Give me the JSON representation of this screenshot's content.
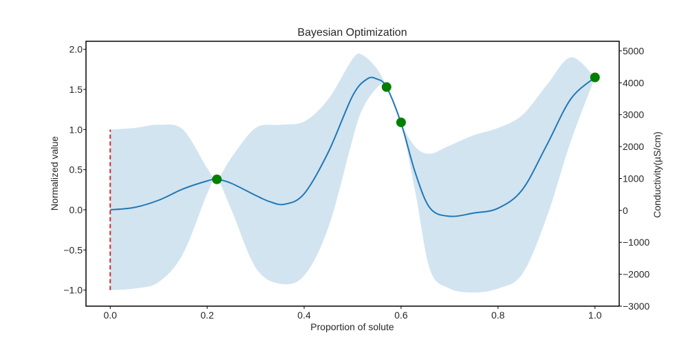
{
  "chart_data": {
    "type": "line",
    "title": "Bayesian Optimization",
    "xlabel": "Proportion of solute",
    "ylabel_left": "Normalized value",
    "ylabel_right": "Conductivity(µS/cm)",
    "xlim": [
      -0.05,
      1.05
    ],
    "ylim_left": [
      -1.2,
      2.1
    ],
    "ylim_right": [
      -3000,
      5300
    ],
    "x_ticks": [
      0.0,
      0.2,
      0.4,
      0.6,
      0.8,
      1.0
    ],
    "x_tick_labels": [
      "0.0",
      "0.2",
      "0.4",
      "0.6",
      "0.8",
      "1.0"
    ],
    "y_left_ticks": [
      -1.0,
      -0.5,
      0.0,
      0.5,
      1.0,
      1.5,
      2.0
    ],
    "y_left_tick_labels": [
      "−1.0",
      "−0.5",
      "0.0",
      "0.5",
      "1.0",
      "1.5",
      "2.0"
    ],
    "y_right_ticks": [
      -3000,
      -2000,
      -1000,
      0,
      1000,
      2000,
      3000,
      4000,
      5000
    ],
    "y_right_tick_labels": [
      "−3000",
      "−2000",
      "−1000",
      "0",
      "1000",
      "2000",
      "3000",
      "4000",
      "5000"
    ],
    "grid": false,
    "colors": {
      "mean": "#1f77b4",
      "band": "#1f77b4",
      "observations": "#008000",
      "marker_line": "#d62728"
    },
    "series": [
      {
        "kind": "mean",
        "x": [
          0.0,
          0.05,
          0.1,
          0.15,
          0.2,
          0.22,
          0.25,
          0.3,
          0.33,
          0.36,
          0.4,
          0.45,
          0.5,
          0.53,
          0.55,
          0.57,
          0.6,
          0.63,
          0.66,
          0.7,
          0.75,
          0.8,
          0.85,
          0.9,
          0.95,
          1.0
        ],
        "y": [
          0.0,
          0.03,
          0.12,
          0.26,
          0.36,
          0.38,
          0.33,
          0.18,
          0.1,
          0.07,
          0.2,
          0.72,
          1.42,
          1.63,
          1.63,
          1.53,
          1.08,
          0.45,
          0.02,
          -0.08,
          -0.04,
          0.02,
          0.25,
          0.8,
          1.38,
          1.65
        ]
      },
      {
        "kind": "band_upper",
        "x": [
          0.0,
          0.05,
          0.1,
          0.15,
          0.2,
          0.22,
          0.25,
          0.3,
          0.35,
          0.4,
          0.45,
          0.5,
          0.52,
          0.55,
          0.57,
          0.6,
          0.63,
          0.66,
          0.7,
          0.75,
          0.8,
          0.85,
          0.9,
          0.95,
          1.0
        ],
        "y": [
          1.0,
          1.02,
          1.06,
          1.0,
          0.52,
          0.38,
          0.65,
          1.02,
          1.06,
          1.1,
          1.38,
          1.88,
          1.93,
          1.76,
          1.53,
          1.08,
          0.78,
          0.7,
          0.8,
          0.93,
          1.02,
          1.18,
          1.55,
          1.9,
          1.65
        ]
      },
      {
        "kind": "band_lower",
        "x": [
          0.0,
          0.05,
          0.1,
          0.15,
          0.2,
          0.22,
          0.25,
          0.3,
          0.35,
          0.4,
          0.45,
          0.5,
          0.52,
          0.55,
          0.57,
          0.6,
          0.63,
          0.66,
          0.7,
          0.75,
          0.8,
          0.85,
          0.9,
          0.95,
          1.0
        ],
        "y": [
          -1.0,
          -0.98,
          -0.9,
          -0.55,
          0.2,
          0.38,
          0.0,
          -0.72,
          -0.92,
          -0.82,
          -0.22,
          0.88,
          1.25,
          1.52,
          1.53,
          1.08,
          0.2,
          -0.75,
          -0.98,
          -1.03,
          -0.98,
          -0.8,
          -0.1,
          0.85,
          1.65
        ]
      }
    ],
    "observations": [
      {
        "x": 0.22,
        "y": 0.38
      },
      {
        "x": 0.57,
        "y": 1.53
      },
      {
        "x": 0.6,
        "y": 1.09
      },
      {
        "x": 1.0,
        "y": 1.65
      }
    ],
    "reference_line": {
      "x": 0.0,
      "y_from": -1.0,
      "y_to": 1.0,
      "style": "dashed"
    }
  }
}
